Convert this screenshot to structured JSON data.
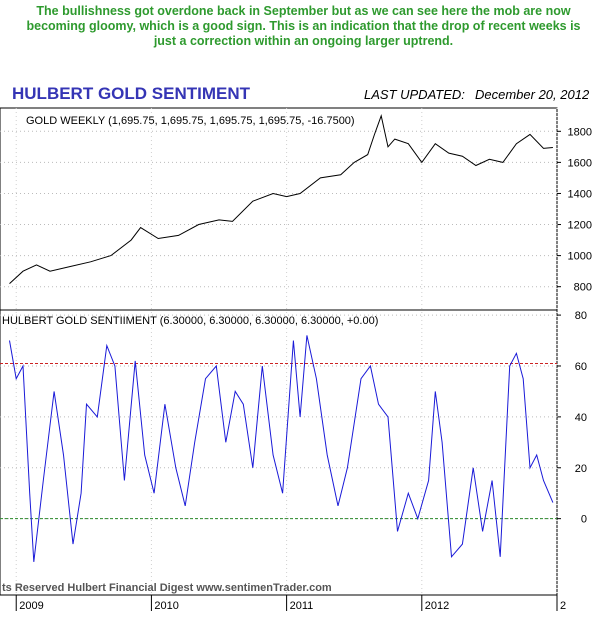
{
  "caption": {
    "text": "The bullishness got overdone back in September but as we can see here the mob are now becoming gloomy, which is a good sign. This is an indication that the drop of recent weeks is just a correction within an ongoing larger uptrend."
  },
  "header": {
    "title": "HULBERT GOLD SENTIMENT",
    "updated_label": "LAST UPDATED:",
    "updated_date": "December 20, 2012"
  },
  "footer": {
    "copyright": "ts Reserved  Hulbert Financial Digest  www.sentimenTrader.com"
  },
  "colors": {
    "title": "#3535b5",
    "caption": "#2e9a2e",
    "gold_line": "#000000",
    "sentiment_line": "#1a1ad8",
    "upper_ref": "#cc2222",
    "lower_ref": "#2a8a2a",
    "grid": "#bbbbbb"
  },
  "chart_data": [
    {
      "type": "line",
      "label": "GOLD WEEKLY (1,695.75, 1,695.75, 1,695.75, 1,695.75, -16.7500)",
      "x_unit": "years",
      "ylim": [
        650,
        1950
      ],
      "y_ticks": [
        800,
        1000,
        1200,
        1400,
        1600,
        1800
      ],
      "grid": "horizontal dotted",
      "series": [
        {
          "x": [
            2008.95,
            2009.05,
            2009.15,
            2009.25,
            2009.4,
            2009.55,
            2009.7,
            2009.85,
            2009.92,
            2010.05,
            2010.2,
            2010.35,
            2010.5,
            2010.6,
            2010.75,
            2010.9,
            2011.0,
            2011.1,
            2011.25,
            2011.4,
            2011.5,
            2011.6,
            2011.65,
            2011.7,
            2011.75,
            2011.8,
            2011.9,
            2012.0,
            2012.1,
            2012.2,
            2012.3,
            2012.4,
            2012.5,
            2012.6,
            2012.7,
            2012.8,
            2012.9,
            2012.97
          ],
          "values": [
            820,
            900,
            940,
            900,
            930,
            960,
            1000,
            1100,
            1180,
            1110,
            1130,
            1200,
            1230,
            1220,
            1350,
            1400,
            1380,
            1400,
            1500,
            1520,
            1600,
            1650,
            1780,
            1900,
            1700,
            1750,
            1720,
            1600,
            1720,
            1660,
            1640,
            1580,
            1620,
            1600,
            1720,
            1780,
            1690,
            1695.75
          ]
        }
      ]
    },
    {
      "type": "line",
      "label": "HULBERT GOLD SENTIIMENT (6.30000, 6.30000, 6.30000, 6.30000, +0.00)",
      "x_unit": "years",
      "x_ticks": [
        "2009",
        "2010",
        "2011",
        "2012",
        "2"
      ],
      "ylim": [
        -30,
        82
      ],
      "y_ticks": [
        0,
        20,
        40,
        60,
        80
      ],
      "reference_lines": [
        61,
        0
      ],
      "grid": "horizontal dotted",
      "series": [
        {
          "x": [
            2008.95,
            2009.0,
            2009.05,
            2009.1,
            2009.13,
            2009.2,
            2009.28,
            2009.35,
            2009.42,
            2009.48,
            2009.52,
            2009.6,
            2009.67,
            2009.73,
            2009.8,
            2009.88,
            2009.95,
            2010.02,
            2010.1,
            2010.18,
            2010.25,
            2010.32,
            2010.4,
            2010.48,
            2010.55,
            2010.62,
            2010.68,
            2010.75,
            2010.82,
            2010.9,
            2010.97,
            2011.05,
            2011.1,
            2011.15,
            2011.22,
            2011.3,
            2011.38,
            2011.45,
            2011.55,
            2011.62,
            2011.68,
            2011.75,
            2011.82,
            2011.9,
            2011.97,
            2012.05,
            2012.1,
            2012.15,
            2012.22,
            2012.3,
            2012.38,
            2012.45,
            2012.52,
            2012.58,
            2012.65,
            2012.7,
            2012.75,
            2012.8,
            2012.85,
            2012.9,
            2012.97
          ],
          "values": [
            70,
            55,
            60,
            10,
            -17,
            15,
            50,
            25,
            -10,
            10,
            45,
            40,
            68,
            60,
            15,
            62,
            25,
            10,
            45,
            20,
            5,
            30,
            55,
            60,
            30,
            50,
            45,
            20,
            60,
            25,
            10,
            70,
            40,
            72,
            55,
            25,
            5,
            20,
            55,
            60,
            45,
            40,
            -5,
            10,
            0,
            15,
            50,
            30,
            -15,
            -10,
            20,
            -5,
            15,
            -15,
            60,
            65,
            55,
            20,
            25,
            15,
            6.3
          ]
        }
      ]
    }
  ]
}
